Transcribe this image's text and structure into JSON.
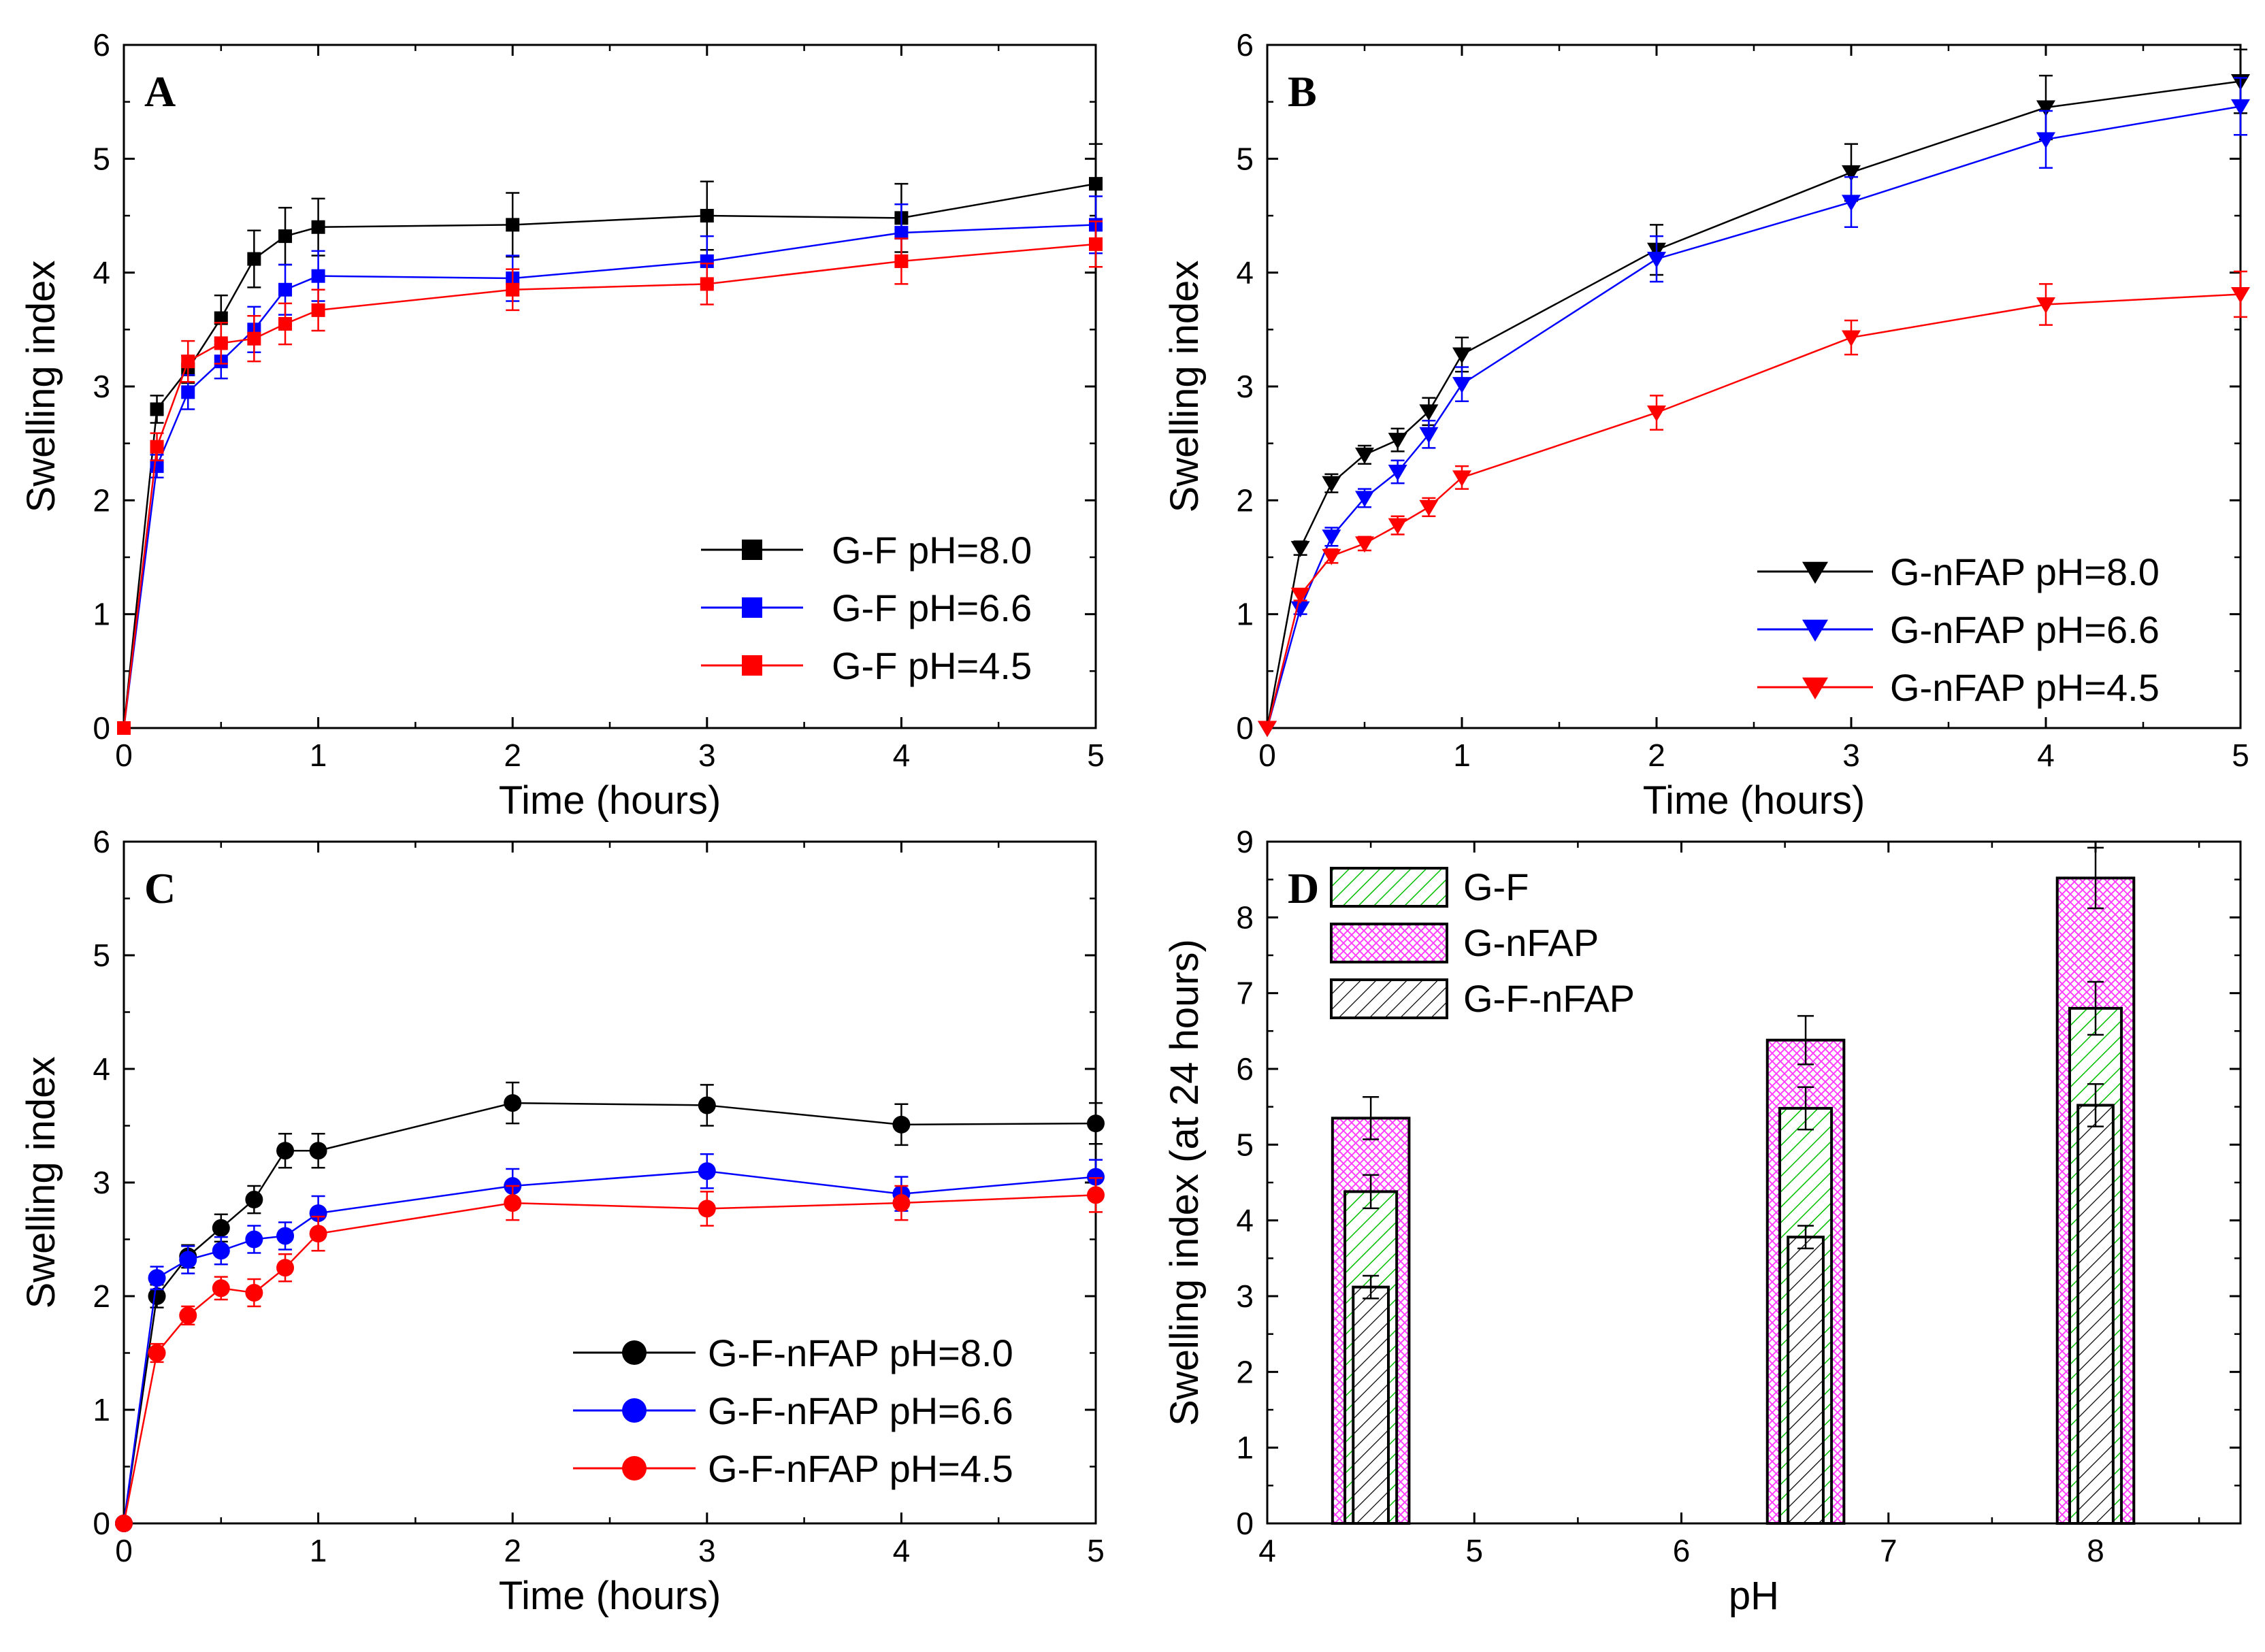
{
  "chart_data": [
    {
      "panel": "A",
      "type": "line",
      "xlabel": "Time (hours)",
      "ylabel": "Swelling index",
      "xlim": [
        0,
        5
      ],
      "ylim": [
        0,
        6
      ],
      "xticks": [
        "0",
        "1",
        "2",
        "3",
        "4",
        "5"
      ],
      "yticks": [
        "0",
        "1",
        "2",
        "3",
        "4",
        "5",
        "6"
      ],
      "marker": "square",
      "legend_position": "bottom-right",
      "x": [
        0,
        0.17,
        0.33,
        0.5,
        0.67,
        0.83,
        1,
        2,
        3,
        4,
        5
      ],
      "series": [
        {
          "name": "G-F pH=8.0",
          "color": "#000000",
          "values": [
            0,
            2.8,
            3.15,
            3.6,
            4.12,
            4.32,
            4.4,
            4.42,
            4.5,
            4.48,
            4.78
          ],
          "errors": [
            0,
            0.12,
            0.12,
            0.2,
            0.25,
            0.25,
            0.25,
            0.28,
            0.3,
            0.3,
            0.35
          ]
        },
        {
          "name": "G-F pH=6.6",
          "color": "#0000ff",
          "values": [
            0,
            2.3,
            2.95,
            3.22,
            3.5,
            3.85,
            3.97,
            3.95,
            4.1,
            4.35,
            4.42
          ],
          "errors": [
            0,
            0.1,
            0.15,
            0.15,
            0.2,
            0.22,
            0.22,
            0.2,
            0.22,
            0.25,
            0.25
          ]
        },
        {
          "name": "G-F pH=4.5",
          "color": "#ff0000",
          "values": [
            0,
            2.47,
            3.22,
            3.38,
            3.42,
            3.55,
            3.67,
            3.85,
            3.9,
            4.1,
            4.25
          ],
          "errors": [
            0,
            0.12,
            0.18,
            0.18,
            0.2,
            0.18,
            0.18,
            0.18,
            0.18,
            0.2,
            0.2
          ]
        }
      ]
    },
    {
      "panel": "B",
      "type": "line",
      "xlabel": "Time (hours)",
      "ylabel": "Swelling index",
      "xlim": [
        0,
        5
      ],
      "ylim": [
        0,
        6
      ],
      "xticks": [
        "0",
        "1",
        "2",
        "3",
        "4",
        "5"
      ],
      "yticks": [
        "0",
        "1",
        "2",
        "3",
        "4",
        "5",
        "6"
      ],
      "marker": "triangle-down",
      "legend_position": "bottom-right",
      "x": [
        0,
        0.17,
        0.33,
        0.5,
        0.67,
        0.83,
        1,
        2,
        3,
        4,
        5
      ],
      "series": [
        {
          "name": "G-nFAP pH=8.0",
          "color": "#000000",
          "values": [
            0,
            1.58,
            2.15,
            2.4,
            2.53,
            2.78,
            3.28,
            4.2,
            4.88,
            5.45,
            5.68
          ],
          "errors": [
            0,
            0.06,
            0.08,
            0.08,
            0.1,
            0.12,
            0.15,
            0.22,
            0.25,
            0.28,
            0.28
          ]
        },
        {
          "name": "G-nFAP pH=6.6",
          "color": "#0000ff",
          "values": [
            0,
            1.05,
            1.68,
            2.02,
            2.25,
            2.58,
            3.02,
            4.12,
            4.62,
            5.17,
            5.46
          ],
          "errors": [
            0,
            0.05,
            0.08,
            0.08,
            0.1,
            0.12,
            0.15,
            0.2,
            0.22,
            0.25,
            0.25
          ]
        },
        {
          "name": "G-nFAP pH=4.5",
          "color": "#ff0000",
          "values": [
            0,
            1.17,
            1.51,
            1.62,
            1.78,
            1.94,
            2.2,
            2.77,
            3.43,
            3.72,
            3.81
          ],
          "errors": [
            0,
            0.05,
            0.06,
            0.06,
            0.08,
            0.08,
            0.1,
            0.15,
            0.15,
            0.18,
            0.2
          ]
        }
      ]
    },
    {
      "panel": "C",
      "type": "line",
      "xlabel": "Time (hours)",
      "ylabel": "Swelling index",
      "xlim": [
        0,
        5
      ],
      "ylim": [
        0,
        6
      ],
      "xticks": [
        "0",
        "1",
        "2",
        "3",
        "4",
        "5"
      ],
      "yticks": [
        "0",
        "1",
        "2",
        "3",
        "4",
        "5",
        "6"
      ],
      "marker": "circle",
      "legend_position": "bottom-right",
      "x": [
        0,
        0.17,
        0.33,
        0.5,
        0.67,
        0.83,
        1,
        2,
        3,
        4,
        5
      ],
      "series": [
        {
          "name": "G-F-nFAP pH=8.0",
          "color": "#000000",
          "values": [
            0,
            2.0,
            2.35,
            2.6,
            2.85,
            3.28,
            3.28,
            3.7,
            3.68,
            3.51,
            3.52
          ],
          "errors": [
            0,
            0.1,
            0.1,
            0.12,
            0.12,
            0.15,
            0.15,
            0.18,
            0.18,
            0.18,
            0.18
          ]
        },
        {
          "name": "G-F-nFAP pH=6.6",
          "color": "#0000ff",
          "values": [
            0,
            2.16,
            2.32,
            2.4,
            2.5,
            2.53,
            2.73,
            2.97,
            3.1,
            2.9,
            3.05
          ],
          "errors": [
            0,
            0.1,
            0.12,
            0.12,
            0.12,
            0.12,
            0.15,
            0.15,
            0.15,
            0.15,
            0.15
          ]
        },
        {
          "name": "G-F-nFAP pH=4.5",
          "color": "#ff0000",
          "values": [
            0,
            1.5,
            1.83,
            2.07,
            2.03,
            2.25,
            2.55,
            2.82,
            2.77,
            2.82,
            2.89
          ],
          "errors": [
            0,
            0.08,
            0.08,
            0.1,
            0.12,
            0.12,
            0.15,
            0.15,
            0.15,
            0.15,
            0.15
          ]
        }
      ]
    },
    {
      "panel": "D",
      "type": "bar",
      "xlabel": "pH",
      "ylabel": "Swelling index (at 24 hours)",
      "xlim": [
        4,
        8.7
      ],
      "ylim": [
        0,
        9
      ],
      "xticks": [
        "4",
        "5",
        "6",
        "7",
        "8"
      ],
      "yticks": [
        "0",
        "1",
        "2",
        "3",
        "4",
        "5",
        "6",
        "7",
        "8",
        "9"
      ],
      "legend_position": "top-left",
      "categories": [
        "4.5",
        "6.6",
        "8.0"
      ],
      "series": [
        {
          "name": "G-nFAP",
          "fill": "#ff40ff",
          "hatch": "crosshatch",
          "values": [
            5.35,
            6.38,
            8.52
          ],
          "errors": [
            0.28,
            0.32,
            0.4
          ]
        },
        {
          "name": "G-F",
          "fill": "#00c000",
          "hatch": "diagonal",
          "values": [
            4.38,
            5.48,
            6.8
          ],
          "errors": [
            0.22,
            0.28,
            0.35
          ]
        },
        {
          "name": "G-F-nFAP",
          "fill": "#000000",
          "hatch": "diagonal",
          "values": [
            3.12,
            3.78,
            5.52
          ],
          "errors": [
            0.15,
            0.15,
            0.28
          ]
        }
      ],
      "legend_order": [
        "G-F",
        "G-nFAP",
        "G-F-nFAP"
      ]
    }
  ]
}
